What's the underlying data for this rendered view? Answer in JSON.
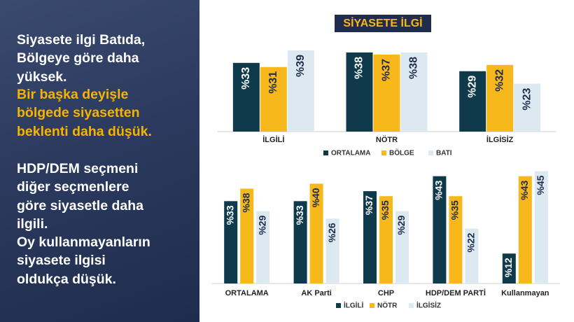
{
  "left_panel": {
    "paragraphs": [
      {
        "lines": [
          "Siyasete ilgi Batıda,",
          "Bölgeye göre daha",
          "yüksek."
        ],
        "color": "#ffffff"
      },
      {
        "lines": [
          "Bir başka deyişle",
          "bölgede siyasetten",
          "beklenti daha düşük."
        ],
        "color": "#f5b400"
      },
      {
        "lines": [
          "HDP/DEM seçmeni",
          "diğer seçmenlere",
          "göre siyasetle daha",
          "ilgili.",
          "Oy kullanmayanların",
          "siyasete ilgisi",
          "oldukça düşük."
        ],
        "color": "#ffffff"
      }
    ]
  },
  "chart_data": [
    {
      "type": "bar",
      "title": "SİYASETE İLGİ",
      "categories": [
        "İLGİLİ",
        "NÖTR",
        "İLGİSİZ"
      ],
      "series": [
        {
          "name": "ORTALAMA",
          "color": "#0e3a4c",
          "values": [
            33,
            38,
            29
          ],
          "value_labels": [
            "%33",
            "%38",
            "%29"
          ]
        },
        {
          "name": "BÖLGE",
          "color": "#f6b81a",
          "values": [
            31,
            37,
            32
          ],
          "value_labels": [
            "%31",
            "%37",
            "%32"
          ]
        },
        {
          "name": "BATI",
          "color": "#dce9f1",
          "values": [
            39,
            38,
            23
          ],
          "value_labels": [
            "%39",
            "%38",
            "%23"
          ]
        }
      ],
      "ylim": [
        0,
        40
      ]
    },
    {
      "type": "bar",
      "categories": [
        "ORTALAMA",
        "AK Parti",
        "CHP",
        "HDP/DEM PARTİ",
        "Kullanmayan"
      ],
      "series": [
        {
          "name": "İLGİLİ",
          "color": "#0e3a4c",
          "values": [
            33,
            33,
            37,
            43,
            12
          ],
          "value_labels": [
            "%33",
            "%33",
            "%37",
            "%43",
            "%12"
          ]
        },
        {
          "name": "NÖTR",
          "color": "#f6b81a",
          "values": [
            38,
            40,
            35,
            35,
            43
          ],
          "value_labels": [
            "%38",
            "%40",
            "%35",
            "%35",
            "%43"
          ]
        },
        {
          "name": "İLGİSİZ",
          "color": "#dce9f1",
          "values": [
            29,
            26,
            29,
            22,
            45
          ],
          "value_labels": [
            "%29",
            "%26",
            "%29",
            "%22",
            "%45"
          ]
        }
      ],
      "ylim": [
        0,
        46
      ]
    }
  ]
}
